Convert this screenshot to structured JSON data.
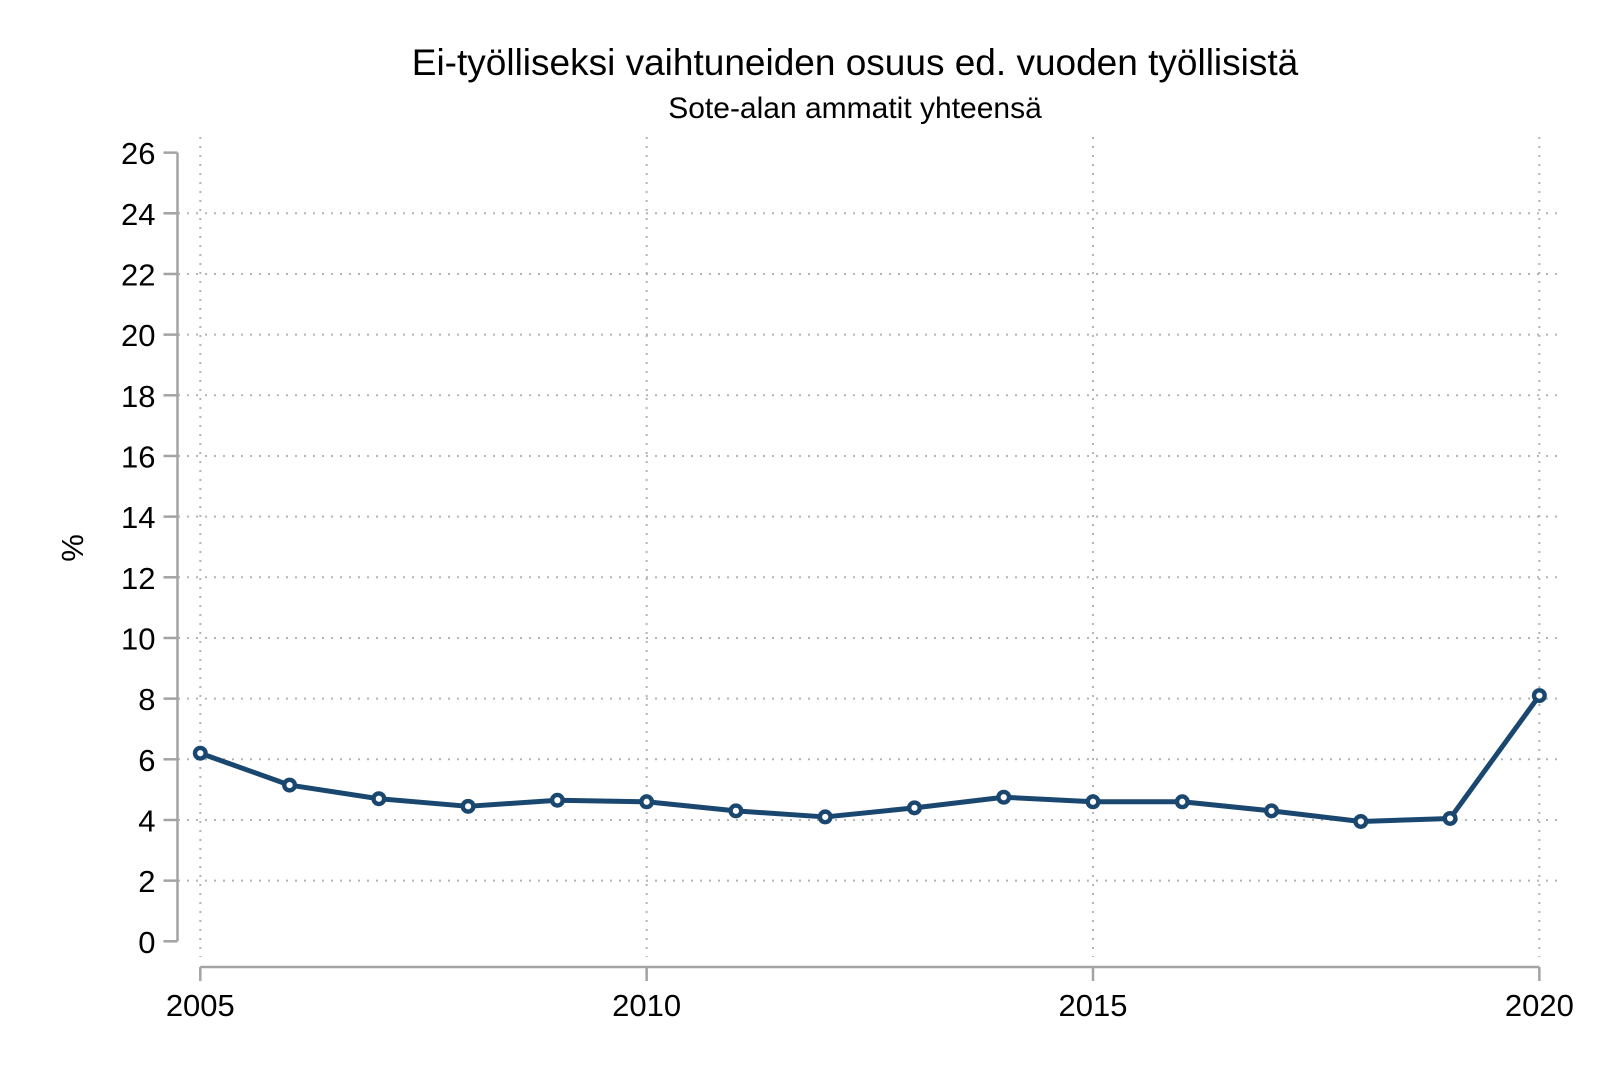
{
  "page": {
    "background": "#ffffff"
  },
  "chart_data": {
    "type": "line",
    "title": "Ei-työlliseksi vaihtuneiden osuus ed. vuoden työllisistä",
    "subtitle": "Sote-alan ammatit yhteensä",
    "xlabel": "",
    "ylabel": "%",
    "x": [
      2005,
      2006,
      2007,
      2008,
      2009,
      2010,
      2011,
      2012,
      2013,
      2014,
      2015,
      2016,
      2017,
      2018,
      2019,
      2020
    ],
    "series": [
      {
        "name": "Sote-alan ammatit yhteensä",
        "values": [
          6.2,
          5.15,
          4.7,
          4.45,
          4.65,
          4.6,
          4.3,
          4.1,
          4.4,
          4.75,
          4.6,
          4.6,
          4.3,
          3.95,
          4.05,
          8.1
        ]
      }
    ],
    "ylim": [
      0,
      26
    ],
    "ytick_step": 2,
    "xticks": [
      2005,
      2010,
      2015,
      2020
    ],
    "grid": "dotted",
    "legend": "none",
    "marker": "hollow-circle",
    "colors": {
      "line": "#1a476f",
      "marker_fill": "#ffffff",
      "axis": "#a3a3a3",
      "grid": "#b4b4b4",
      "text": "#000000"
    }
  }
}
